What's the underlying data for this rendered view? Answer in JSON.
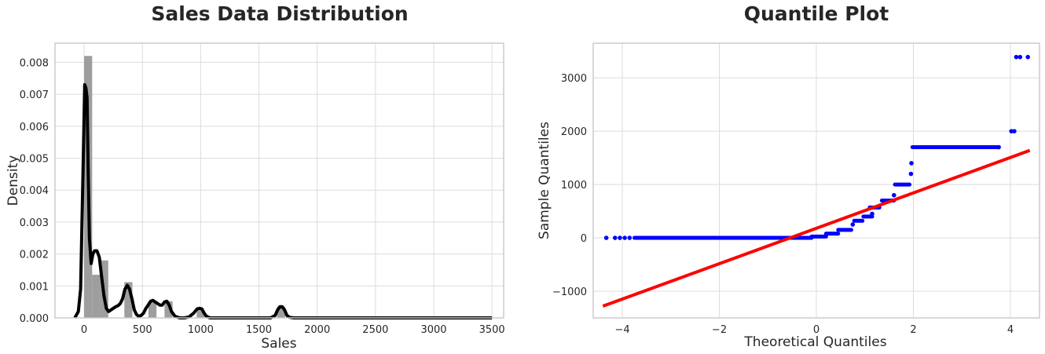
{
  "chart_data": [
    {
      "type": "bar",
      "title": "Sales Data Distribution",
      "xlabel": "Sales",
      "ylabel": "Density",
      "xlim": [
        -250,
        3600
      ],
      "ylim": [
        0,
        0.0086
      ],
      "xticks": [
        0,
        500,
        1000,
        1500,
        2000,
        2500,
        3000,
        3500
      ],
      "yticks": [
        0,
        0.001,
        0.002,
        0.003,
        0.004,
        0.005,
        0.006,
        0.007,
        0.008
      ],
      "xtick_labels": [
        "0",
        "500",
        "1000",
        "1500",
        "2000",
        "2500",
        "3000",
        "3500"
      ],
      "ytick_labels": [
        "0.000",
        "0.001",
        "0.002",
        "0.003",
        "0.004",
        "0.005",
        "0.006",
        "0.007",
        "0.008"
      ],
      "grid": true,
      "histogram": {
        "bin_width": 69,
        "color": "#999999",
        "bins": [
          {
            "x0": 0,
            "density": 0.0082
          },
          {
            "x0": 69,
            "density": 0.00135
          },
          {
            "x0": 138,
            "density": 0.0018
          },
          {
            "x0": 345,
            "density": 0.00112
          },
          {
            "x0": 552,
            "density": 0.00052
          },
          {
            "x0": 690,
            "density": 0.00052
          },
          {
            "x0": 966,
            "density": 0.00025
          },
          {
            "x0": 1656,
            "density": 0.00035
          }
        ]
      },
      "kde": {
        "color": "#000000",
        "x": [
          -80,
          -50,
          -30,
          -10,
          5,
          15,
          25,
          35,
          45,
          60,
          75,
          90,
          110,
          130,
          150,
          170,
          190,
          210,
          230,
          250,
          270,
          290,
          310,
          330,
          350,
          370,
          390,
          410,
          430,
          450,
          470,
          490,
          510,
          530,
          550,
          570,
          590,
          610,
          630,
          650,
          670,
          690,
          710,
          730,
          750,
          780,
          820,
          860,
          900,
          940,
          970,
          990,
          1010,
          1030,
          1050,
          1080,
          1150,
          1300,
          1500,
          1600,
          1640,
          1660,
          1680,
          1700,
          1720,
          1740,
          1760,
          1800,
          2000,
          2500,
          3000,
          3500
        ],
        "y": [
          0.0,
          0.0002,
          0.0009,
          0.0045,
          0.0073,
          0.0072,
          0.0069,
          0.0045,
          0.0025,
          0.0017,
          0.002,
          0.0021,
          0.0021,
          0.0019,
          0.0013,
          0.0007,
          0.0003,
          0.0002,
          0.00025,
          0.0003,
          0.00035,
          0.00038,
          0.00045,
          0.0006,
          0.0009,
          0.00102,
          0.0009,
          0.0006,
          0.00025,
          0.0001,
          5e-05,
          8e-05,
          0.00015,
          0.0003,
          0.0004,
          0.00052,
          0.00055,
          0.0005,
          0.00045,
          0.0004,
          0.0004,
          0.0005,
          0.00052,
          0.0004,
          0.0002,
          5e-05,
          0.0,
          0.0,
          3e-05,
          0.00015,
          0.00028,
          0.0003,
          0.00028,
          0.00015,
          5e-05,
          0.0,
          0.0,
          0.0,
          0.0,
          0.0,
          8e-05,
          0.00025,
          0.00035,
          0.00035,
          0.00025,
          8e-05,
          2e-05,
          0.0,
          0.0,
          0.0,
          0.0,
          0.0
        ]
      }
    },
    {
      "type": "scatter",
      "title": "Quantile Plot",
      "xlabel": "Theoretical Quantiles",
      "ylabel": "Sample Quantiles",
      "xlim": [
        -4.6,
        4.6
      ],
      "ylim": [
        -1500,
        3650
      ],
      "xticks": [
        -4,
        -2,
        0,
        2,
        4
      ],
      "yticks": [
        -1000,
        0,
        1000,
        2000,
        3000
      ],
      "xtick_labels": [
        "−4",
        "−2",
        "0",
        "2",
        "4"
      ],
      "ytick_labels": [
        "−1000",
        "0",
        "1000",
        "2000",
        "3000"
      ],
      "grid": true,
      "marker_color": "#0000ff",
      "line_color": "#ff0000",
      "fit_line": {
        "x": [
          -4.4,
          4.4
        ],
        "y": [
          -1280,
          1640
        ]
      },
      "segments": [
        {
          "x0": -3.75,
          "x1": -0.1,
          "y": 0
        },
        {
          "x0": -0.1,
          "x1": 0.2,
          "y": 25
        },
        {
          "x0": 0.2,
          "x1": 0.45,
          "y": 80
        },
        {
          "x0": 0.45,
          "x1": 0.72,
          "y": 150
        },
        {
          "x0": 0.78,
          "x1": 0.95,
          "y": 320
        },
        {
          "x0": 0.97,
          "x1": 1.15,
          "y": 400
        },
        {
          "x0": 1.1,
          "x1": 1.3,
          "y": 570
        },
        {
          "x0": 1.35,
          "x1": 1.6,
          "y": 700
        },
        {
          "x0": 1.62,
          "x1": 1.92,
          "y": 1000
        },
        {
          "x0": 1.98,
          "x1": 3.75,
          "y": 1700
        }
      ],
      "points": [
        {
          "x": -4.33,
          "y": 0
        },
        {
          "x": -4.15,
          "y": 0
        },
        {
          "x": -4.05,
          "y": 0
        },
        {
          "x": -3.95,
          "y": 0
        },
        {
          "x": -3.85,
          "y": 0
        },
        {
          "x": 0.75,
          "y": 250
        },
        {
          "x": 1.15,
          "y": 450
        },
        {
          "x": 1.6,
          "y": 800
        },
        {
          "x": 1.95,
          "y": 1200
        },
        {
          "x": 1.96,
          "y": 1400
        },
        {
          "x": 3.76,
          "y": 1700
        },
        {
          "x": 4.02,
          "y": 2000
        },
        {
          "x": 4.08,
          "y": 2000
        },
        {
          "x": 4.12,
          "y": 3390
        },
        {
          "x": 4.2,
          "y": 3390
        },
        {
          "x": 4.36,
          "y": 3390
        }
      ]
    }
  ]
}
